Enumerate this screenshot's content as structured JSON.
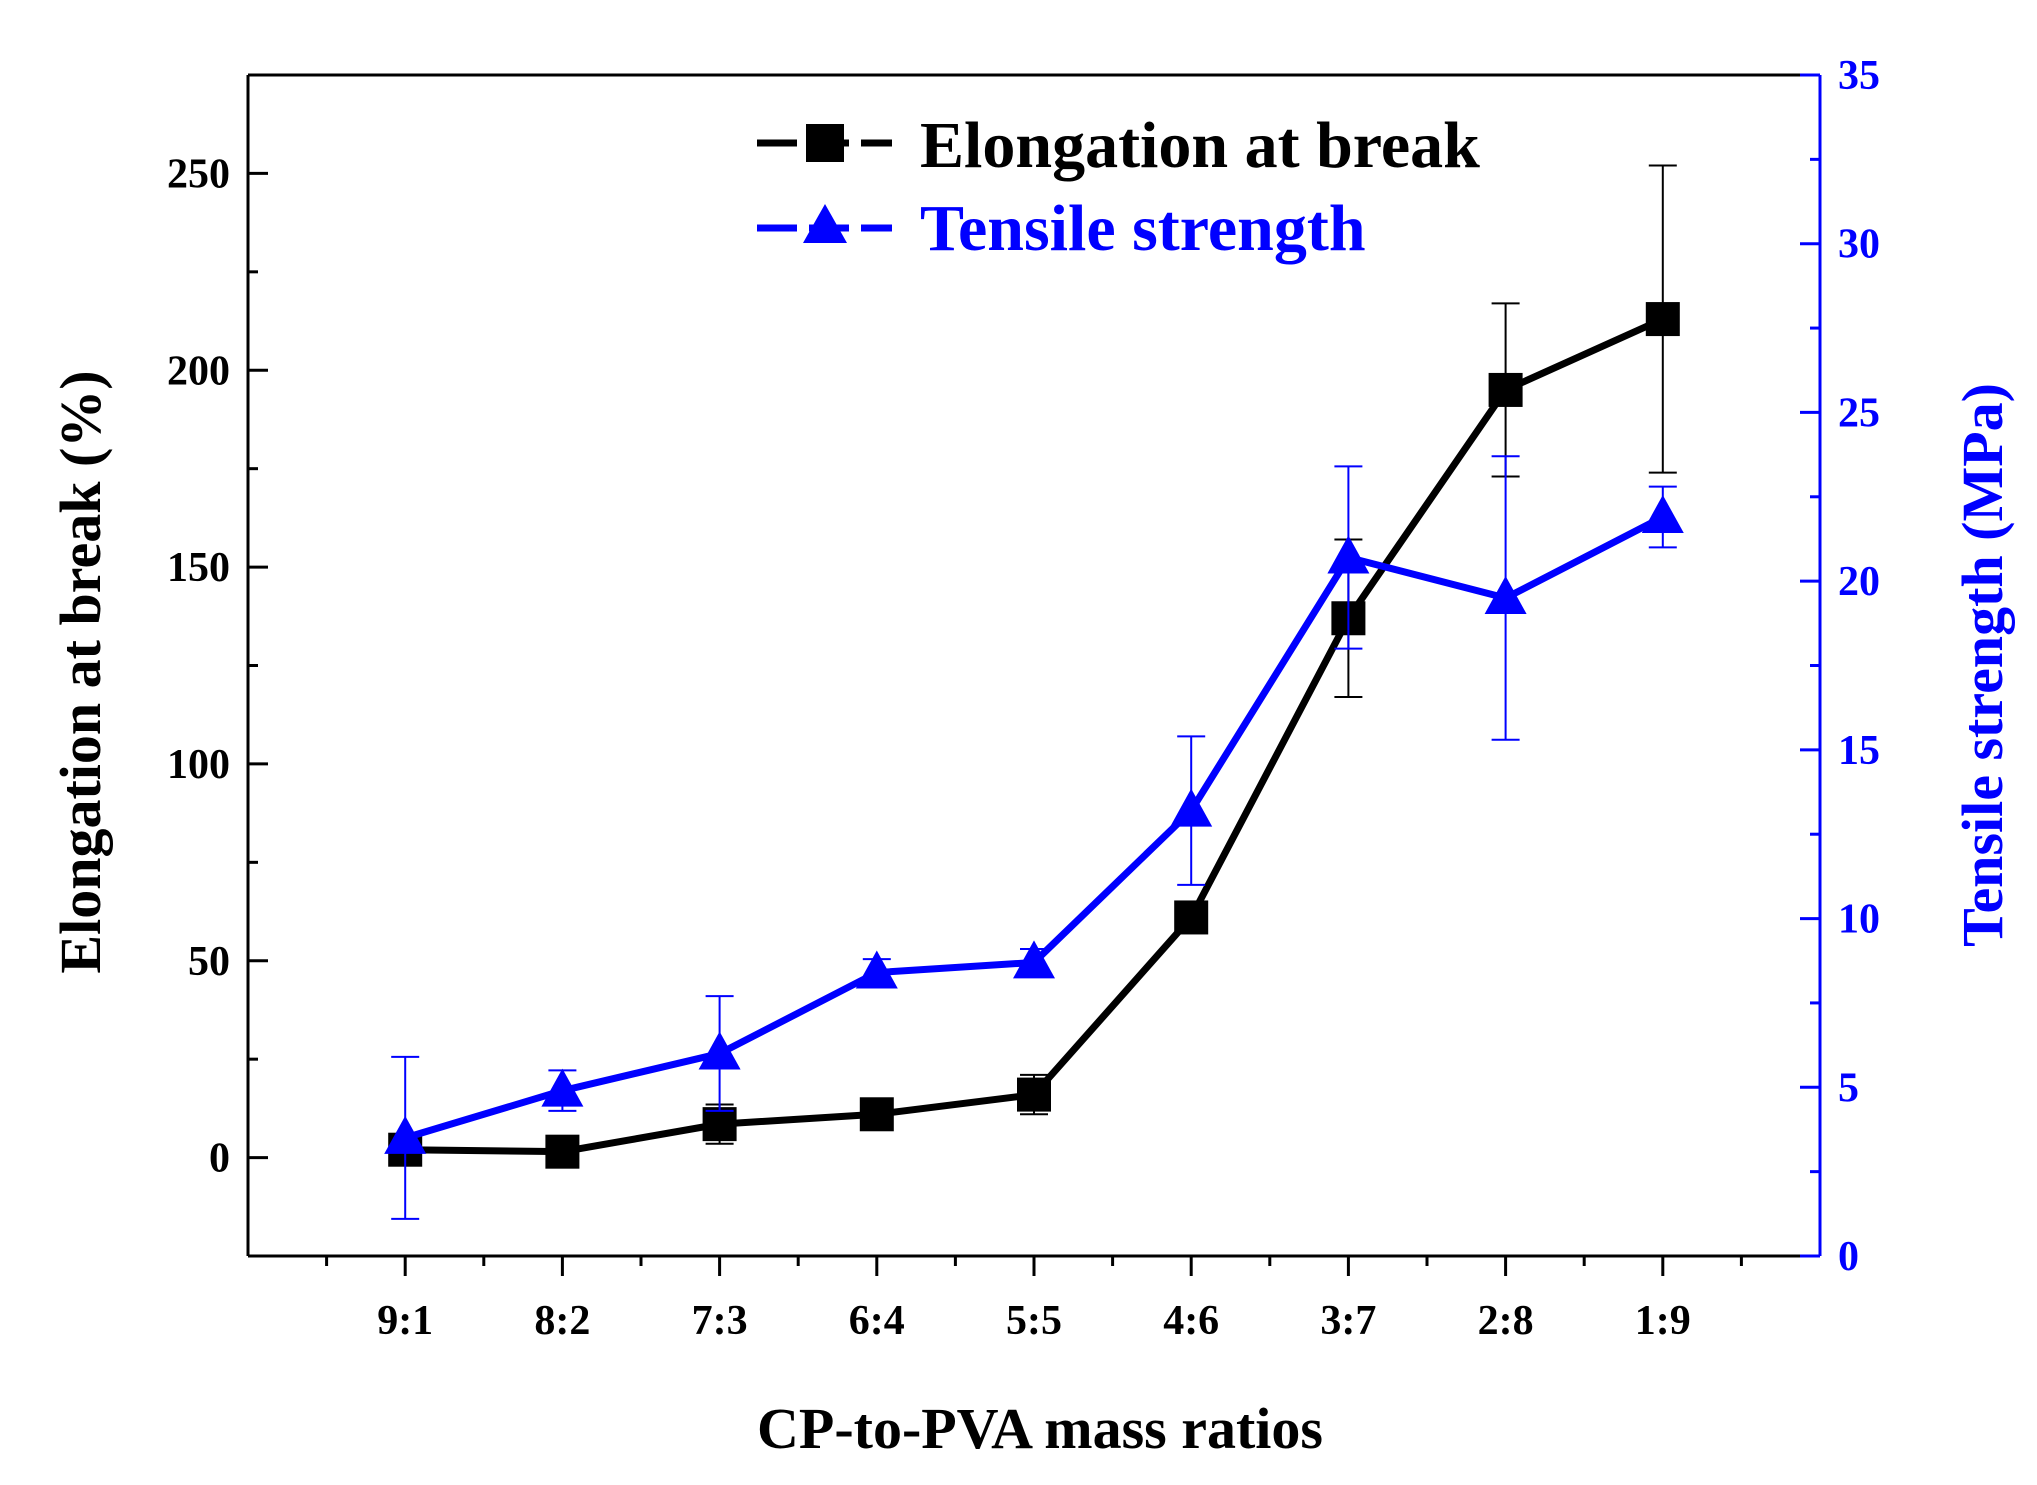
{
  "chart_data": {
    "type": "line",
    "categories": [
      "9:1",
      "8:2",
      "7:3",
      "6:4",
      "5:5",
      "4:6",
      "3:7",
      "2:8",
      "1:9"
    ],
    "xlabel": "CP-to-PVA mass ratios",
    "ylabel_left": "Elongation at break (%)",
    "ylabel_right": "Tensile strength (MPa)",
    "ylim_left": [
      -25,
      275
    ],
    "ylim_right": [
      0,
      35
    ],
    "yticks_left": [
      0,
      50,
      100,
      150,
      200,
      250
    ],
    "yticks_right": [
      0,
      5,
      10,
      15,
      20,
      25,
      30,
      35
    ],
    "legend_position": "top",
    "grid": false,
    "series": [
      {
        "name": "Elongation at break",
        "axis": "left",
        "color": "#000000",
        "marker": "square",
        "values": [
          2,
          1.5,
          8.5,
          11,
          16,
          61,
          137,
          195,
          213
        ],
        "errors": [
          0,
          0,
          5,
          0,
          5,
          0,
          20,
          22,
          39
        ]
      },
      {
        "name": "Tensile strength",
        "axis": "right",
        "color": "#0000ff",
        "marker": "triangle",
        "values": [
          3.5,
          4.9,
          6.0,
          8.4,
          8.7,
          13.2,
          20.7,
          19.5,
          21.9
        ],
        "errors": [
          2.4,
          0.6,
          1.7,
          0.4,
          0.4,
          2.2,
          2.7,
          4.2,
          0.9
        ]
      }
    ]
  }
}
